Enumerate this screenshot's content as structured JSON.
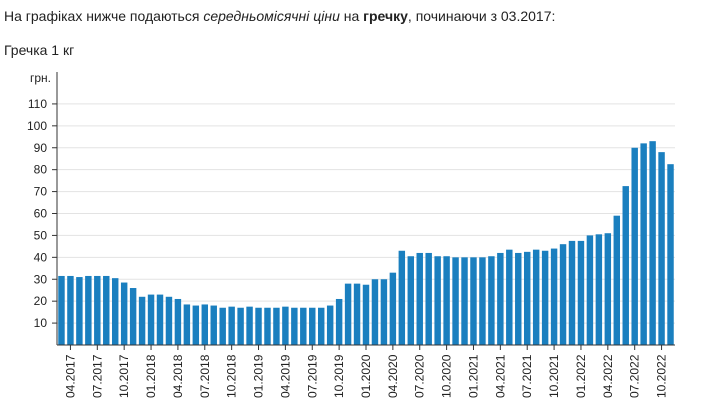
{
  "intro": {
    "part1": "На графіках нижче подаються ",
    "emphasis": "середньомісячні ціни",
    "part2": " на ",
    "product": "гречку",
    "part3": ", починаючи з 03.2017:"
  },
  "chart_title": "Гречка 1 кг",
  "chart_data": {
    "type": "bar",
    "title": "Гречка 1 кг",
    "ylabel": "грн.",
    "xlabel": "",
    "ylim": [
      0,
      110
    ],
    "yticks": [
      10,
      20,
      30,
      40,
      50,
      60,
      70,
      80,
      90,
      100,
      110
    ],
    "grid": true,
    "color": "#1a7fbf",
    "categories": [
      "03.2017",
      "04.2017",
      "05.2017",
      "06.2017",
      "07.2017",
      "08.2017",
      "09.2017",
      "10.2017",
      "11.2017",
      "12.2017",
      "01.2018",
      "02.2018",
      "03.2018",
      "04.2018",
      "05.2018",
      "06.2018",
      "07.2018",
      "08.2018",
      "09.2018",
      "10.2018",
      "11.2018",
      "12.2018",
      "01.2019",
      "02.2019",
      "03.2019",
      "04.2019",
      "05.2019",
      "06.2019",
      "07.2019",
      "08.2019",
      "09.2019",
      "10.2019",
      "11.2019",
      "12.2019",
      "01.2020",
      "02.2020",
      "03.2020",
      "04.2020",
      "05.2020",
      "06.2020",
      "07.2020",
      "08.2020",
      "09.2020",
      "10.2020",
      "11.2020",
      "12.2020",
      "01.2021",
      "02.2021",
      "03.2021",
      "04.2021",
      "05.2021",
      "06.2021",
      "07.2021",
      "08.2021",
      "09.2021",
      "10.2021",
      "11.2021",
      "12.2021",
      "01.2022",
      "02.2022",
      "03.2022",
      "04.2022",
      "05.2022",
      "06.2022",
      "07.2022",
      "08.2022",
      "09.2022",
      "10.2022",
      "11.2022"
    ],
    "values": [
      31.5,
      31.5,
      31,
      31.5,
      31.5,
      31.5,
      30.5,
      28.5,
      26,
      22,
      23,
      23,
      22,
      21,
      18.5,
      18,
      18.5,
      18,
      17,
      17.5,
      17,
      17.5,
      17,
      17,
      17,
      17.5,
      17,
      17,
      17,
      17,
      18,
      21,
      28,
      28,
      27.5,
      30,
      30,
      33,
      43,
      40.5,
      42,
      42,
      40.5,
      40.5,
      40,
      40,
      40,
      40,
      40.5,
      42,
      43.5,
      42,
      42.5,
      43.5,
      43,
      44,
      46,
      47.5,
      47.5,
      50,
      50.5,
      51,
      59,
      72.5,
      90,
      92,
      93,
      88,
      82.5
    ],
    "x_tick_labels": [
      "04.2017",
      "07.2017",
      "10.2017",
      "01.2018",
      "04.2018",
      "07.2018",
      "10.2018",
      "01.2019",
      "04.2019",
      "07.2019",
      "10.2019",
      "01.2020",
      "04.2020",
      "07.2020",
      "10.2020",
      "01.2021",
      "04.2021",
      "07.2021",
      "10.2021",
      "01.2022",
      "04.2022",
      "07.2022",
      "10.2022"
    ]
  }
}
